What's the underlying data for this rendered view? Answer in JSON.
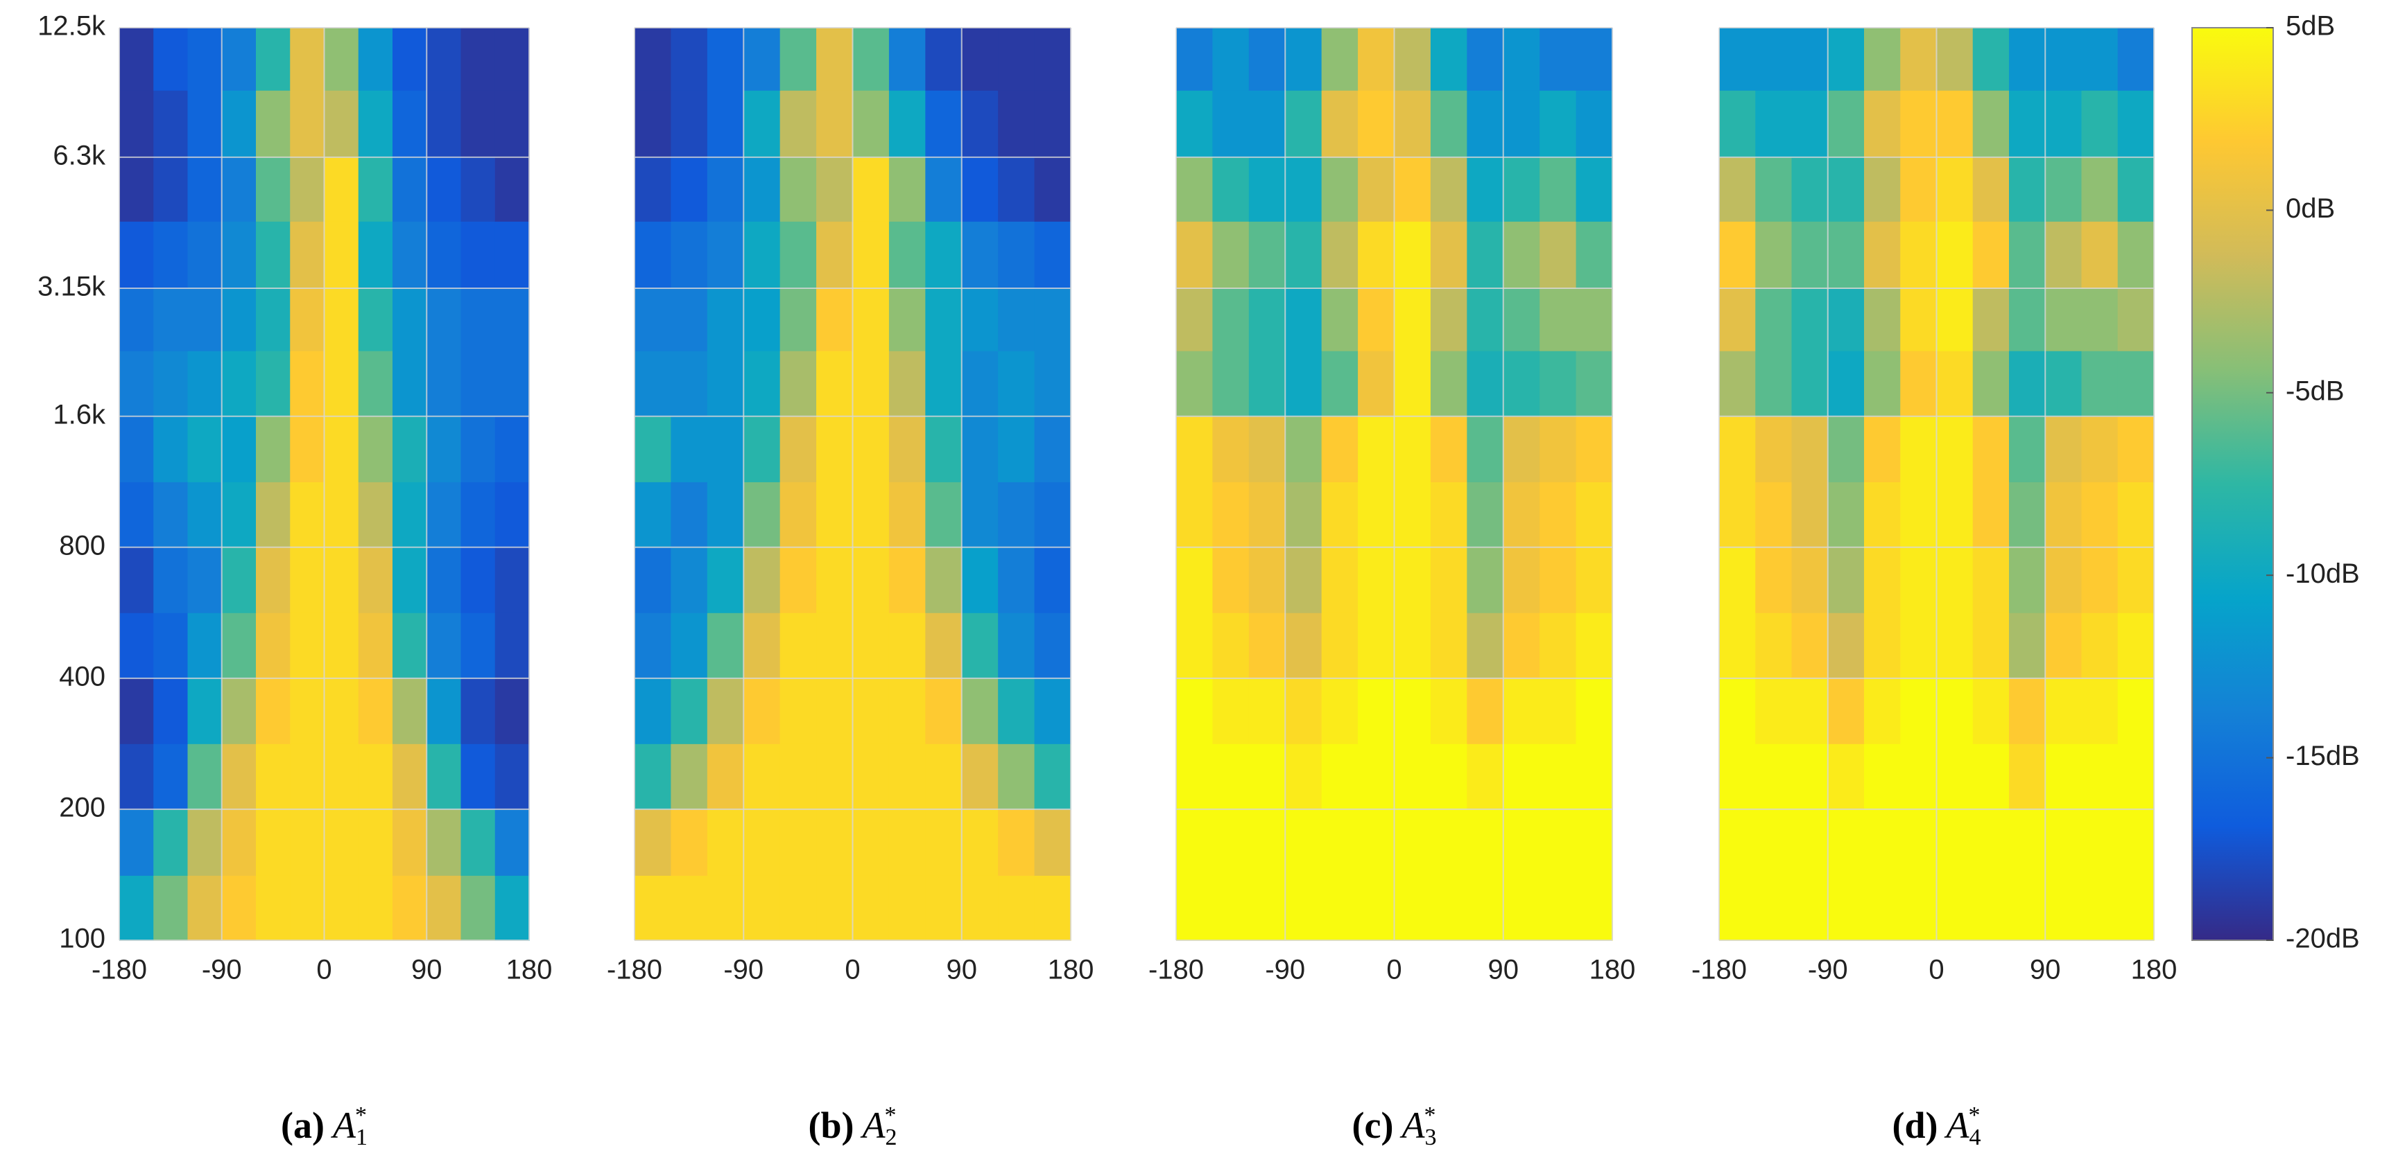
{
  "chart_data": [
    {
      "type": "heatmap",
      "colormap": "parula",
      "show_ytick_labels": true,
      "grid": true,
      "ylog": true,
      "xlim": [
        -180,
        180
      ],
      "xticks": [
        -180,
        -90,
        0,
        90,
        180
      ],
      "ylim": [
        100,
        12500
      ],
      "yticks": [
        {
          "value": 12500,
          "label": "12.5k"
        },
        {
          "value": 6300,
          "label": "6.3k"
        },
        {
          "value": 3150,
          "label": "3.15k"
        },
        {
          "value": 1600,
          "label": "1.6k"
        },
        800,
        400,
        200,
        100
      ],
      "xbins": [
        -180,
        -150,
        -120,
        -90,
        -60,
        -30,
        0,
        30,
        60,
        90,
        120,
        150,
        180
      ],
      "ybins": [
        100,
        141,
        200,
        283,
        400,
        566,
        800,
        1131,
        1600,
        2263,
        3150,
        4490,
        6300,
        8980,
        12500
      ],
      "values": [
        [
          -10,
          -5,
          0,
          2,
          3,
          3,
          3,
          3,
          2,
          0,
          -5,
          -10
        ],
        [
          -14,
          -8,
          -2,
          1,
          3,
          3,
          3,
          3,
          1,
          -3,
          -8,
          -14
        ],
        [
          -18,
          -16,
          -6,
          0,
          3,
          3,
          3,
          3,
          0,
          -8,
          -17,
          -18
        ],
        [
          -19,
          -17,
          -10,
          -3,
          2,
          3,
          3,
          2,
          -3,
          -12,
          -18,
          -19
        ],
        [
          -17,
          -16,
          -12,
          -6,
          1,
          3,
          3,
          1,
          -8,
          -14,
          -16,
          -18
        ],
        [
          -18,
          -15,
          -14,
          -8,
          0,
          3,
          3,
          0,
          -10,
          -15,
          -17,
          -18
        ],
        [
          -16,
          -14,
          -12,
          -10,
          -2,
          3,
          3,
          -2,
          -10,
          -14,
          -16,
          -17
        ],
        [
          -15,
          -12,
          -10,
          -11,
          -4,
          2,
          3,
          -4,
          -9,
          -13,
          -15,
          -16
        ],
        [
          -14,
          -13,
          -12,
          -10,
          -8,
          2,
          3,
          -6,
          -12,
          -14,
          -15,
          -15
        ],
        [
          -15,
          -14,
          -14,
          -12,
          -9,
          1,
          3,
          -8,
          -12,
          -14,
          -15,
          -15
        ],
        [
          -17,
          -16,
          -15,
          -13,
          -8,
          0,
          3,
          -10,
          -14,
          -16,
          -17,
          -17
        ],
        [
          -19,
          -18,
          -16,
          -14,
          -6,
          -2,
          3,
          -8,
          -15,
          -17,
          -18,
          -19
        ],
        [
          -19,
          -18,
          -16,
          -12,
          -4,
          0,
          -2,
          -10,
          -16,
          -18,
          -19,
          -19
        ],
        [
          -19,
          -17,
          -16,
          -14,
          -8,
          0,
          -4,
          -12,
          -17,
          -18,
          -19,
          -19
        ]
      ],
      "caption": {
        "label": "(a)",
        "symbol": "A",
        "sub": "1",
        "sup": "*"
      }
    },
    {
      "type": "heatmap",
      "colormap": "parula",
      "show_ytick_labels": false,
      "grid": true,
      "ylog": true,
      "xlim": [
        -180,
        180
      ],
      "xticks": [
        -180,
        -90,
        0,
        90,
        180
      ],
      "ylim": [
        100,
        12500
      ],
      "yticks": [
        12500,
        6300,
        3150,
        1600,
        800,
        400,
        200,
        100
      ],
      "xbins": [
        -180,
        -150,
        -120,
        -90,
        -60,
        -30,
        0,
        30,
        60,
        90,
        120,
        150,
        180
      ],
      "ybins": [
        100,
        141,
        200,
        283,
        400,
        566,
        800,
        1131,
        1600,
        2263,
        3150,
        4490,
        6300,
        8980,
        12500
      ],
      "values": [
        [
          3,
          3,
          3,
          3,
          3,
          3,
          3,
          3,
          3,
          3,
          3,
          3
        ],
        [
          0,
          2,
          3,
          3,
          3,
          3,
          3,
          3,
          3,
          3,
          2,
          0
        ],
        [
          -8,
          -3,
          1,
          3,
          3,
          3,
          3,
          3,
          3,
          0,
          -4,
          -8
        ],
        [
          -12,
          -8,
          -2,
          2,
          3,
          3,
          3,
          3,
          2,
          -4,
          -9,
          -12
        ],
        [
          -14,
          -12,
          -6,
          0,
          3,
          3,
          3,
          3,
          0,
          -8,
          -13,
          -15
        ],
        [
          -15,
          -13,
          -10,
          -2,
          2,
          3,
          3,
          2,
          -3,
          -11,
          -14,
          -16
        ],
        [
          -12,
          -14,
          -12,
          -5,
          1,
          3,
          3,
          1,
          -6,
          -13,
          -14,
          -15
        ],
        [
          -8,
          -12,
          -12,
          -8,
          0,
          3,
          3,
          0,
          -8,
          -13,
          -12,
          -14
        ],
        [
          -13,
          -13,
          -12,
          -10,
          -3,
          3,
          3,
          -2,
          -10,
          -13,
          -12,
          -13
        ],
        [
          -14,
          -14,
          -12,
          -11,
          -5,
          2,
          3,
          -4,
          -10,
          -12,
          -13,
          -13
        ],
        [
          -16,
          -15,
          -14,
          -10,
          -6,
          0,
          3,
          -6,
          -10,
          -14,
          -15,
          -16
        ],
        [
          -18,
          -17,
          -15,
          -12,
          -4,
          -2,
          3,
          -4,
          -14,
          -17,
          -18,
          -19
        ],
        [
          -19,
          -18,
          -16,
          -10,
          -2,
          0,
          -4,
          -10,
          -16,
          -18,
          -19,
          -19
        ],
        [
          -19,
          -18,
          -16,
          -14,
          -6,
          0,
          -6,
          -14,
          -18,
          -19,
          -19,
          -19
        ]
      ],
      "caption": {
        "label": "(b)",
        "symbol": "A",
        "sub": "2",
        "sup": "*"
      }
    },
    {
      "type": "heatmap",
      "colormap": "parula",
      "show_ytick_labels": false,
      "grid": true,
      "ylog": true,
      "xlim": [
        -180,
        180
      ],
      "xticks": [
        -180,
        -90,
        0,
        90,
        180
      ],
      "ylim": [
        100,
        12500
      ],
      "yticks": [
        12500,
        6300,
        3150,
        1600,
        800,
        400,
        200,
        100
      ],
      "xbins": [
        -180,
        -150,
        -120,
        -90,
        -60,
        -30,
        0,
        30,
        60,
        90,
        120,
        150,
        180
      ],
      "ybins": [
        100,
        141,
        200,
        283,
        400,
        566,
        800,
        1131,
        1600,
        2263,
        3150,
        4490,
        6300,
        8980,
        12500
      ],
      "values": [
        [
          5,
          5,
          5,
          5,
          5,
          5,
          5,
          5,
          5,
          5,
          5,
          5
        ],
        [
          5,
          5,
          5,
          5,
          5,
          5,
          5,
          5,
          5,
          5,
          5,
          5
        ],
        [
          5,
          5,
          5,
          4,
          5,
          5,
          5,
          5,
          4,
          5,
          5,
          5
        ],
        [
          5,
          4,
          4,
          3,
          4,
          5,
          5,
          4,
          2,
          4,
          4,
          5
        ],
        [
          4,
          3,
          2,
          0,
          3,
          4,
          4,
          3,
          -2,
          2,
          3,
          4
        ],
        [
          4,
          2,
          1,
          -2,
          3,
          4,
          4,
          3,
          -4,
          1,
          2,
          3
        ],
        [
          3,
          2,
          1,
          -3,
          3,
          4,
          4,
          3,
          -5,
          1,
          2,
          3
        ],
        [
          3,
          1,
          0,
          -4,
          2,
          4,
          4,
          2,
          -6,
          0,
          1,
          2
        ],
        [
          -4,
          -6,
          -8,
          -10,
          -6,
          1,
          4,
          -4,
          -9,
          -8,
          -7,
          -6
        ],
        [
          -2,
          -6,
          -8,
          -10,
          -4,
          2,
          4,
          -2,
          -8,
          -6,
          -4,
          -4
        ],
        [
          0,
          -4,
          -6,
          -8,
          -2,
          3,
          4,
          0,
          -8,
          -4,
          -2,
          -6
        ],
        [
          -4,
          -8,
          -10,
          -10,
          -4,
          0,
          2,
          -2,
          -10,
          -8,
          -6,
          -10
        ],
        [
          -10,
          -12,
          -12,
          -8,
          0,
          2,
          0,
          -6,
          -12,
          -12,
          -10,
          -12
        ],
        [
          -14,
          -12,
          -14,
          -12,
          -4,
          1,
          -2,
          -10,
          -14,
          -12,
          -14,
          -14
        ]
      ],
      "caption": {
        "label": "(c)",
        "symbol": "A",
        "sub": "3",
        "sup": "*"
      }
    },
    {
      "type": "heatmap",
      "colormap": "parula",
      "show_ytick_labels": false,
      "grid": true,
      "ylog": true,
      "xlim": [
        -180,
        180
      ],
      "xticks": [
        -180,
        -90,
        0,
        90,
        180
      ],
      "ylim": [
        100,
        12500
      ],
      "yticks": [
        12500,
        6300,
        3150,
        1600,
        800,
        400,
        200,
        100
      ],
      "xbins": [
        -180,
        -150,
        -120,
        -90,
        -60,
        -30,
        0,
        30,
        60,
        90,
        120,
        150,
        180
      ],
      "ybins": [
        100,
        141,
        200,
        283,
        400,
        566,
        800,
        1131,
        1600,
        2263,
        3150,
        4490,
        6300,
        8980,
        12500
      ],
      "values": [
        [
          5,
          5,
          5,
          5,
          5,
          5,
          5,
          5,
          5,
          5,
          5,
          5
        ],
        [
          5,
          5,
          5,
          5,
          5,
          5,
          5,
          5,
          5,
          5,
          5,
          5
        ],
        [
          5,
          5,
          5,
          4,
          5,
          5,
          5,
          5,
          3,
          5,
          5,
          5
        ],
        [
          5,
          4,
          4,
          2,
          4,
          5,
          5,
          4,
          2,
          4,
          4,
          5
        ],
        [
          4,
          3,
          2,
          -1,
          3,
          4,
          4,
          3,
          -3,
          2,
          3,
          4
        ],
        [
          4,
          2,
          1,
          -3,
          3,
          4,
          4,
          3,
          -4,
          1,
          2,
          3
        ],
        [
          3,
          2,
          0,
          -4,
          3,
          4,
          4,
          2,
          -5,
          1,
          2,
          3
        ],
        [
          3,
          1,
          0,
          -5,
          2,
          4,
          4,
          2,
          -6,
          0,
          1,
          2
        ],
        [
          -3,
          -6,
          -8,
          -10,
          -4,
          2,
          3,
          -4,
          -9,
          -8,
          -6,
          -6
        ],
        [
          0,
          -6,
          -8,
          -9,
          -3,
          3,
          4,
          -2,
          -6,
          -4,
          -4,
          -3
        ],
        [
          2,
          -4,
          -6,
          -6,
          0,
          3,
          4,
          2,
          -6,
          -2,
          0,
          -4
        ],
        [
          -2,
          -6,
          -8,
          -8,
          -2,
          2,
          3,
          0,
          -8,
          -6,
          -4,
          -8
        ],
        [
          -8,
          -10,
          -10,
          -6,
          0,
          2,
          2,
          -4,
          -10,
          -10,
          -8,
          -10
        ],
        [
          -12,
          -12,
          -12,
          -10,
          -4,
          0,
          -2,
          -8,
          -12,
          -12,
          -12,
          -14
        ]
      ],
      "caption": {
        "label": "(d)",
        "symbol": "A",
        "sub": "4",
        "sup": "*"
      }
    },
    {
      "type": "colorbar",
      "colormap": "parula",
      "clim": [
        -20,
        5
      ],
      "ticks": [
        {
          "value": 5,
          "label": "5dB"
        },
        {
          "value": 0,
          "label": "0dB"
        },
        {
          "value": -5,
          "label": "-5dB"
        },
        {
          "value": -10,
          "label": "-10dB"
        },
        {
          "value": -15,
          "label": "-15dB"
        },
        {
          "value": -20,
          "label": "-20dB"
        }
      ]
    }
  ]
}
